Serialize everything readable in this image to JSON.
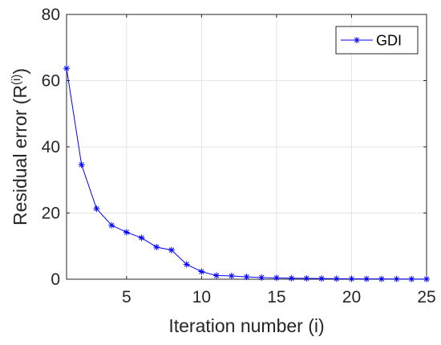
{
  "chart_data": {
    "type": "line",
    "xlabel": "Iteration number (i)",
    "ylabel_prefix": "Residual error (R",
    "ylabel_superscript": "(i)",
    "ylabel_suffix": ")",
    "xlim": [
      1,
      25
    ],
    "ylim": [
      0,
      80
    ],
    "xticks": [
      5,
      10,
      15,
      20,
      25
    ],
    "yticks": [
      0,
      20,
      40,
      60,
      80
    ],
    "grid": true,
    "legend_position": "top-right",
    "marker": "asterisk",
    "series": [
      {
        "name": "GDI",
        "color": "#0000ff",
        "x": [
          1,
          2,
          3,
          4,
          5,
          6,
          7,
          8,
          9,
          10,
          11,
          12,
          13,
          14,
          15,
          16,
          17,
          18,
          19,
          20,
          21,
          22,
          23,
          24,
          25
        ],
        "y": [
          63.7,
          34.6,
          21.3,
          16.3,
          14.2,
          12.5,
          9.7,
          8.8,
          4.5,
          2.3,
          1.1,
          1.0,
          0.7,
          0.5,
          0.4,
          0.3,
          0.25,
          0.2,
          0.15,
          0.12,
          0.1,
          0.08,
          0.06,
          0.05,
          0.04
        ]
      }
    ]
  }
}
